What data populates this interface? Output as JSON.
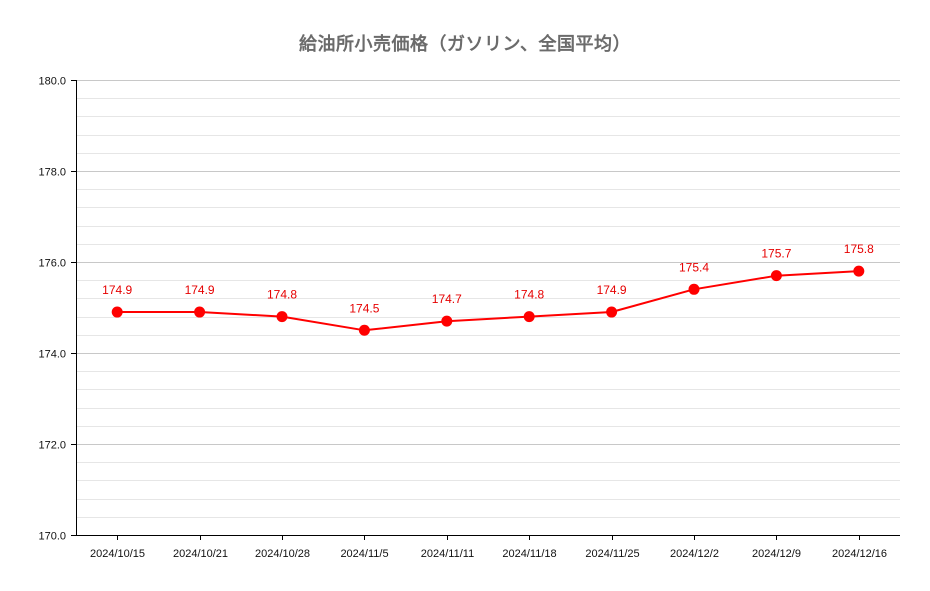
{
  "chart_data": {
    "type": "line",
    "title": "給油所小売価格（ガソリン、全国平均）",
    "xlabel": "",
    "ylabel": "",
    "categories": [
      "2024/10/15",
      "2024/10/21",
      "2024/10/28",
      "2024/11/5",
      "2024/11/11",
      "2024/11/18",
      "2024/11/25",
      "2024/12/2",
      "2024/12/9",
      "2024/12/16"
    ],
    "series": [
      {
        "values": [
          174.9,
          174.9,
          174.8,
          174.5,
          174.7,
          174.8,
          174.9,
          175.4,
          175.7,
          175.8
        ],
        "color": "#ff0000"
      }
    ],
    "ylim": [
      170.0,
      180.0
    ],
    "yticks": [
      "170.0",
      "172.0",
      "174.0",
      "176.0",
      "178.0",
      "180.0"
    ],
    "y_minor_step": 0.4,
    "grid": true,
    "legend": "none",
    "data_labels": true,
    "colors": {
      "line": "#ff0000",
      "label": "#e60000",
      "grid_major": "#c8c8c8",
      "grid_minor": "#e6e6e6",
      "axis": "#000000"
    }
  }
}
